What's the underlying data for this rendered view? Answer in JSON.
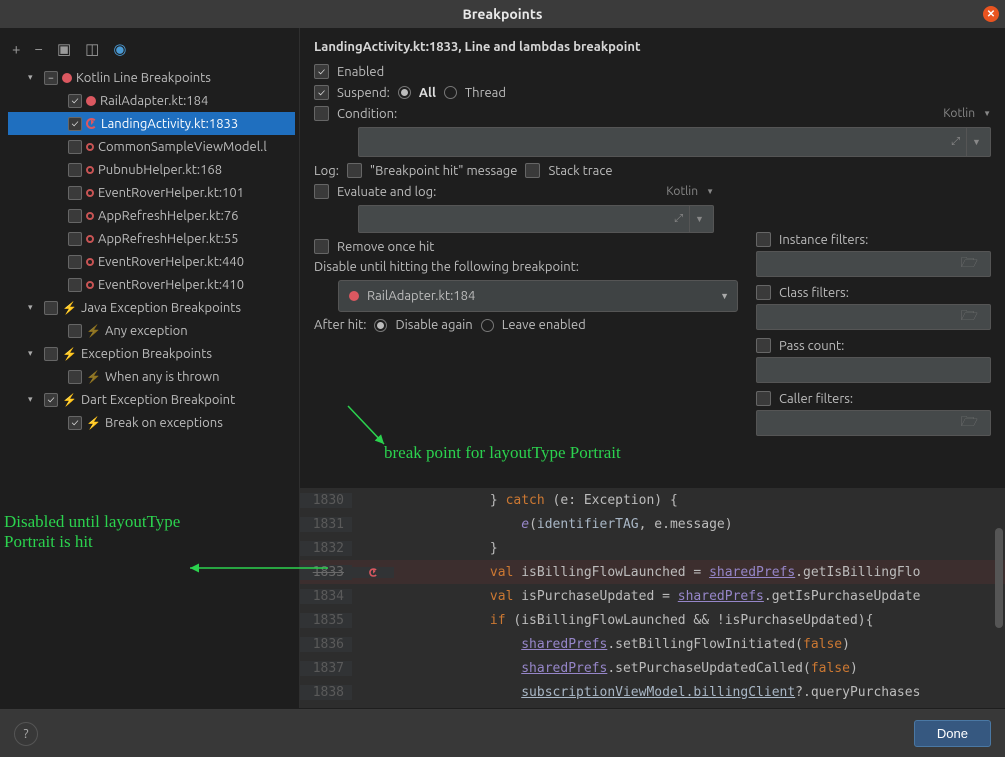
{
  "window": {
    "title": "Breakpoints"
  },
  "tree": {
    "groups": [
      {
        "label": "Kotlin Line Breakpoints",
        "expanded": true,
        "check": "mixed",
        "icon": "dot-red",
        "children": [
          {
            "label": "RailAdapter.kt:184",
            "check": "checked",
            "icon": "dot-red"
          },
          {
            "label": "LandingActivity.kt:1833",
            "check": "checked",
            "icon": "loop",
            "selected": true
          },
          {
            "label": "CommonSampleViewModel.l",
            "check": "",
            "icon": "dot-muted"
          },
          {
            "label": "PubnubHelper.kt:168",
            "check": "",
            "icon": "dot-muted"
          },
          {
            "label": "EventRoverHelper.kt:101",
            "check": "",
            "icon": "dot-muted"
          },
          {
            "label": "AppRefreshHelper.kt:76",
            "check": "",
            "icon": "dot-muted"
          },
          {
            "label": "AppRefreshHelper.kt:55",
            "check": "",
            "icon": "dot-muted"
          },
          {
            "label": "EventRoverHelper.kt:440",
            "check": "",
            "icon": "dot-muted"
          },
          {
            "label": "EventRoverHelper.kt:410",
            "check": "",
            "icon": "dot-muted"
          }
        ]
      },
      {
        "label": "Java Exception Breakpoints",
        "expanded": true,
        "check": "",
        "icon": "lightning",
        "children": [
          {
            "label": "Any exception",
            "check": "",
            "icon": "lightning-muted"
          }
        ]
      },
      {
        "label": "Exception Breakpoints",
        "expanded": true,
        "check": "",
        "icon": "lightning",
        "children": [
          {
            "label": "When any is thrown",
            "check": "",
            "icon": "lightning-muted"
          }
        ]
      },
      {
        "label": "Dart Exception Breakpoint",
        "expanded": true,
        "check": "checked",
        "icon": "lightning",
        "children": [
          {
            "label": "Break on exceptions",
            "check": "checked",
            "icon": "lightning"
          }
        ]
      }
    ]
  },
  "detail": {
    "title": "LandingActivity.kt:1833, Line and lambdas breakpoint",
    "enabled_label": "Enabled",
    "suspend_label": "Suspend:",
    "all_label": "All",
    "thread_label": "Thread",
    "condition_label": "Condition:",
    "cond_lang": "Kotlin",
    "log_label": "Log:",
    "bp_hit_label": "\"Breakpoint hit\" message",
    "stack_label": "Stack trace",
    "eval_label": "Evaluate and log:",
    "eval_lang": "Kotlin",
    "remove_label": "Remove once hit",
    "disable_until_label": "Disable until hitting the following breakpoint:",
    "combo_value": "RailAdapter.kt:184",
    "after_hit_label": "After hit:",
    "disable_again_label": "Disable again",
    "leave_label": "Leave enabled",
    "filters": {
      "instance": "Instance filters:",
      "class": "Class filters:",
      "pass": "Pass count:",
      "caller": "Caller filters:"
    }
  },
  "code": {
    "lines": [
      {
        "n": "1830",
        "html": "            } <span class='kw'>catch</span> (e: Exception) {"
      },
      {
        "n": "1831",
        "html": "                <span class='fn'>e</span>(<span class='id'>identifierTAG</span>, e.message)"
      },
      {
        "n": "1832",
        "html": "            }"
      },
      {
        "n": "1833",
        "bp": true,
        "html": "            <span class='kw'>val</span> isBillingFlowLaunched = <span class='ul'>sharedPrefs</span>.getIsBillingFlo"
      },
      {
        "n": "1834",
        "html": "            <span class='kw'>val</span> isPurchaseUpdated = <span class='ul'>sharedPrefs</span>.getIsPurchaseUpdate"
      },
      {
        "n": "1835",
        "html": "            <span class='kw'>if</span> (isBillingFlowLaunched && !isPurchaseUpdated){"
      },
      {
        "n": "1836",
        "html": "                <span class='ul'>sharedPrefs</span>.setBillingFlowInitiated(<span class='bool'>false</span>)"
      },
      {
        "n": "1837",
        "html": "                <span class='ul'>sharedPrefs</span>.setPurchaseUpdatedCalled(<span class='bool'>false</span>)"
      },
      {
        "n": "1838",
        "html": "                <span class='ul2'>subscriptionViewModel.billingClient</span>?.queryPurchases"
      }
    ]
  },
  "annotations": {
    "a1": "break point for layoutType Portrait",
    "a2_line1": "Disabled until layoutType",
    "a2_line2": "Portrait is hit"
  },
  "buttons": {
    "done": "Done"
  }
}
